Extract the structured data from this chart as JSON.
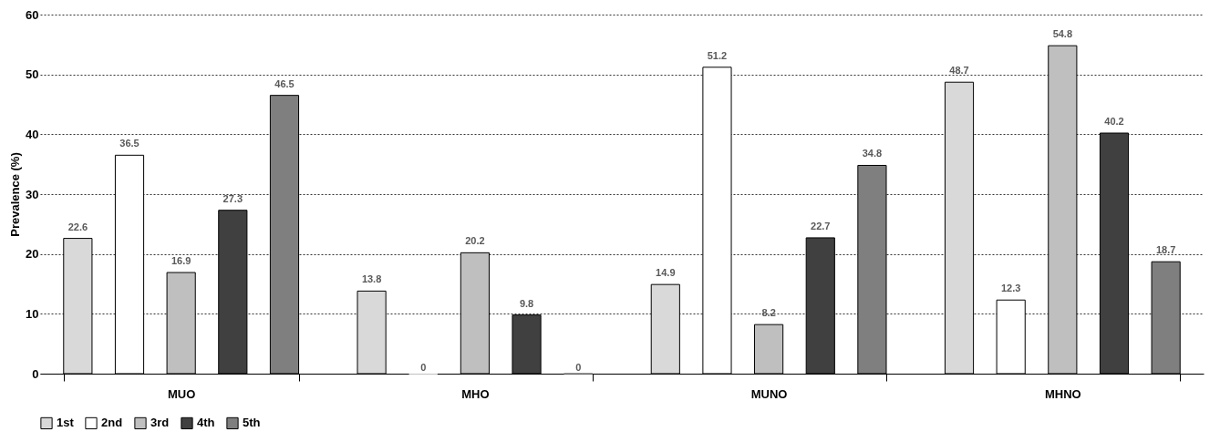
{
  "chart_data": {
    "type": "bar",
    "ylabel": "Prevalence (%)",
    "categories": [
      "MUO",
      "MHO",
      "MUNO",
      "MHNO"
    ],
    "series": [
      {
        "name": "1st",
        "color": "#d9d9d9",
        "values": [
          22.6,
          13.8,
          14.9,
          48.7
        ],
        "value_labels": [
          "22.6",
          "13.8",
          "14.9",
          "48.7"
        ]
      },
      {
        "name": "2nd",
        "color": "#ffffff",
        "values": [
          36.5,
          0,
          51.2,
          12.3
        ],
        "value_labels": [
          "36.5",
          "0",
          "51.2",
          "12.3"
        ]
      },
      {
        "name": "3rd",
        "color": "#bfbfbf",
        "values": [
          16.9,
          20.2,
          8.2,
          54.8
        ],
        "value_labels": [
          "16.9",
          "20.2",
          "8.2",
          "54.8"
        ]
      },
      {
        "name": "4th",
        "color": "#404040",
        "values": [
          27.3,
          9.8,
          22.7,
          40.2
        ],
        "value_labels": [
          "27.3",
          "9.8",
          "22.7",
          "40.2"
        ]
      },
      {
        "name": "5th",
        "color": "#7f7f7f",
        "values": [
          46.5,
          0,
          34.8,
          18.7
        ],
        "value_labels": [
          "46.5",
          "0",
          "34.8",
          "18.7"
        ]
      }
    ],
    "ylim": [
      0,
      60
    ],
    "yticks": [
      0,
      10,
      20,
      30,
      40,
      50,
      60
    ],
    "grid": "y",
    "legend": "bottom"
  }
}
